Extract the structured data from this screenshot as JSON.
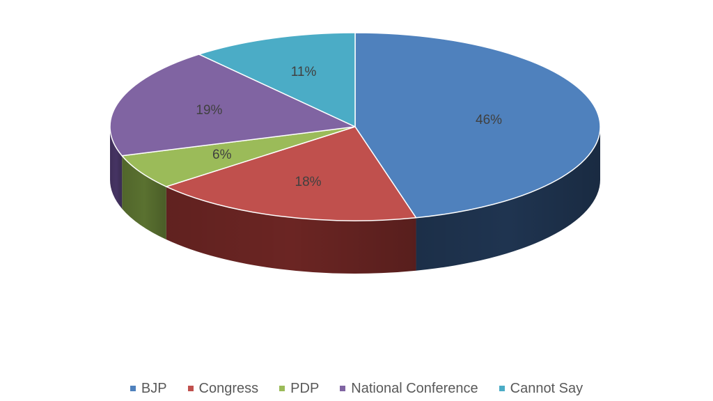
{
  "chart_data": {
    "type": "pie",
    "style": "3d",
    "title": "",
    "categories": [
      "BJP",
      "Congress",
      "PDP",
      "National Conference",
      "Cannot Say"
    ],
    "values": [
      46,
      18,
      6,
      19,
      11
    ],
    "labels": [
      "46%",
      "18%",
      "6%",
      "19%",
      "11%"
    ],
    "colors": [
      "#4f81bd",
      "#c0504d",
      "#9bbb59",
      "#8064a2",
      "#4bacc6"
    ],
    "side_colors": [
      "#1f3450",
      "#6b2523",
      "#5a7130",
      "#463463",
      "#2a6d7f"
    ],
    "legend": {
      "position": "bottom",
      "entries": [
        "BJP",
        "Congress",
        "PDP",
        "National Conference",
        "Cannot Say"
      ]
    }
  }
}
